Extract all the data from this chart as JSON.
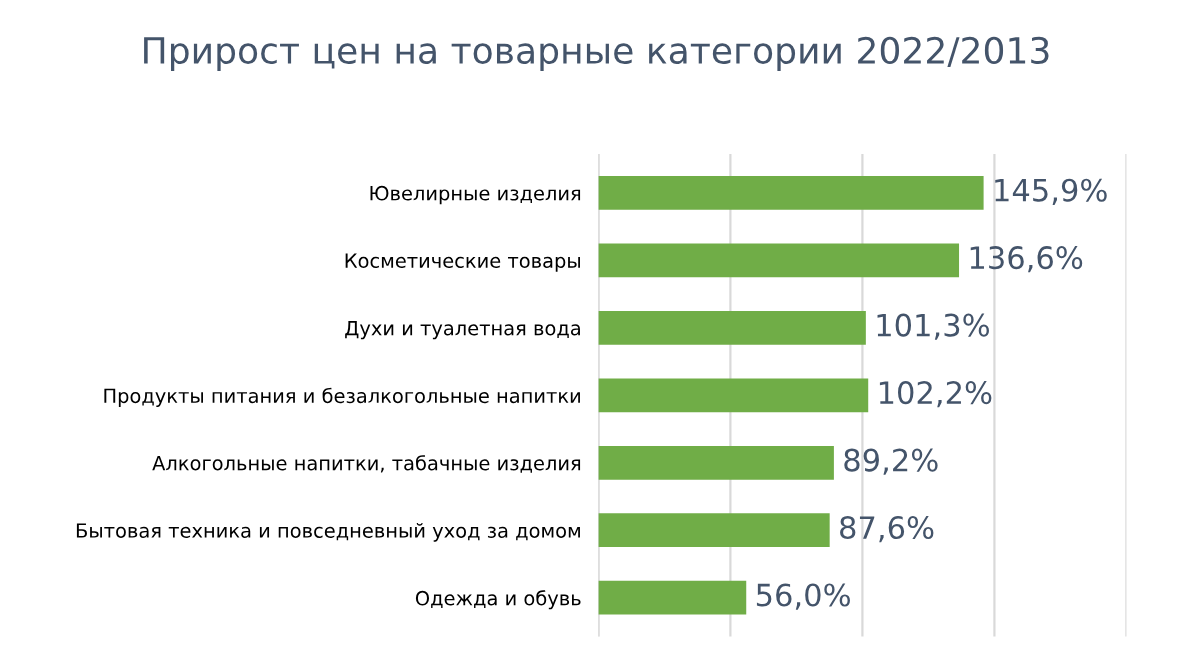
{
  "chart_data": {
    "type": "bar",
    "orientation": "horizontal",
    "title": "Прирост цен на товарные категории 2022/2013",
    "categories": [
      "Ювелирные изделия",
      "Косметические товары",
      "Духи и туалетная вода",
      "Продукты питания и безалкогольные напитки",
      "Алкогольные напитки, табачные изделия",
      "Бытовая техника и повседневный уход за домом",
      "Одежда и обувь"
    ],
    "values": [
      145.9,
      136.6,
      101.3,
      102.2,
      89.2,
      87.6,
      56.0
    ],
    "value_labels": [
      "145,9%",
      "136,6%",
      "101,3%",
      "102,2%",
      "89,2%",
      "87,6%",
      "56,0%"
    ],
    "color": "#70ad47",
    "xlim": [
      0,
      200
    ],
    "xticks": [
      {
        "value": 0,
        "label": null
      },
      {
        "value": 50,
        "label": null
      },
      {
        "value": 100,
        "label": null
      },
      {
        "value": 150,
        "label": null
      },
      {
        "value": 200,
        "label": null
      }
    ],
    "grid": "x",
    "tick_labels": "y",
    "legend": false
  }
}
